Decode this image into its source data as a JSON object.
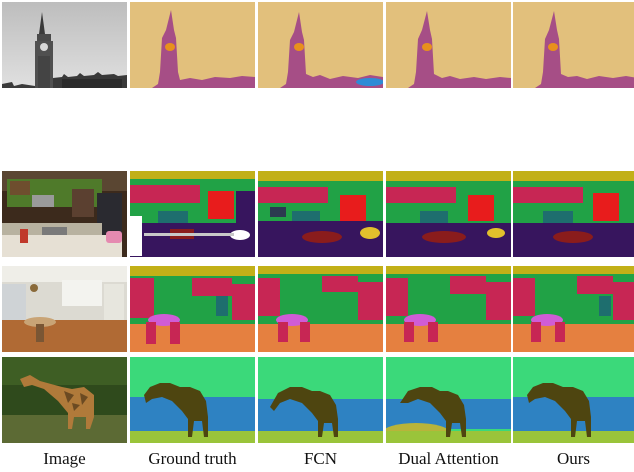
{
  "columns": [
    {
      "label": "Image"
    },
    {
      "label": "Ground truth"
    },
    {
      "label": "FCN"
    },
    {
      "label": "Dual Attention"
    },
    {
      "label": "Ours"
    }
  ],
  "rows": [
    {
      "scene": "clock-tower"
    },
    {
      "scene": "kitchen"
    },
    {
      "scene": "dining-room"
    },
    {
      "scene": "giraffe"
    }
  ],
  "segmentation_colors": {
    "sky": "#E2C07C",
    "tower": "#A64E86",
    "clock_face": "#E8911C",
    "car": "#2E8BD6",
    "wall": "#21A246",
    "cabinet": "#C72654",
    "floor": "#37155E",
    "counter": "#1E6E6E",
    "appliance": "#E81C1C",
    "ceiling": "#C2B018",
    "rug": "#E58040",
    "table": "#D05CD6",
    "grass": "#3BD97A",
    "water": "#2E82C2",
    "ground": "#9AC43A",
    "giraffe": "#4E4510"
  }
}
